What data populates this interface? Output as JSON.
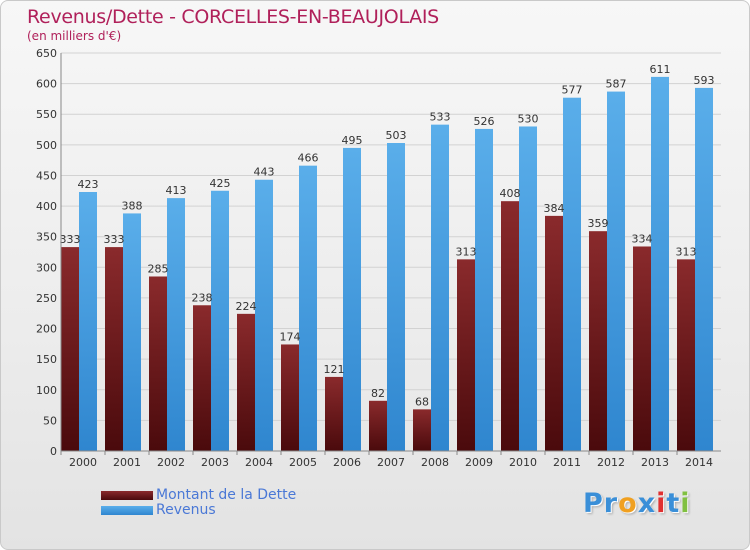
{
  "header": {
    "title": "Revenus/Dette - CORCELLES-EN-BEAUJOLAIS",
    "subtitle": "(en milliers d'€)"
  },
  "legend": {
    "items": [
      {
        "label": "Montant de la Dette",
        "color": "#7a1f22"
      },
      {
        "label": "Revenus",
        "color": "#4a9fe0"
      }
    ]
  },
  "logo": {
    "letters": [
      {
        "ch": "P",
        "color": "#3a8fd8"
      },
      {
        "ch": "r",
        "color": "#3a8fd8"
      },
      {
        "ch": "o",
        "color": "#f0a020"
      },
      {
        "ch": "x",
        "color": "#3a8fd8"
      },
      {
        "ch": "i",
        "color": "#e03030"
      },
      {
        "ch": "t",
        "color": "#3a8fd8"
      },
      {
        "ch": "i",
        "color": "#80c040"
      }
    ]
  },
  "chart_data": {
    "type": "bar",
    "title": "Revenus/Dette - CORCELLES-EN-BEAUJOLAIS",
    "subtitle": "(en milliers d'€)",
    "categories": [
      "2000",
      "2001",
      "2002",
      "2003",
      "2004",
      "2005",
      "2006",
      "2007",
      "2008",
      "2009",
      "2010",
      "2011",
      "2012",
      "2013",
      "2014"
    ],
    "series": [
      {
        "name": "Montant de la Dette",
        "color": "#7a1f22",
        "values": [
          333,
          333,
          285,
          238,
          224,
          174,
          121,
          82,
          68,
          313,
          408,
          384,
          359,
          334,
          313
        ]
      },
      {
        "name": "Revenus",
        "color": "#4a9fe0",
        "values": [
          423,
          388,
          413,
          425,
          443,
          466,
          495,
          503,
          533,
          526,
          530,
          577,
          587,
          611,
          593
        ]
      }
    ],
    "ylim": [
      0,
      650
    ],
    "yticks": [
      0,
      50,
      100,
      150,
      200,
      250,
      300,
      350,
      400,
      450,
      500,
      550,
      600,
      650
    ],
    "grid": true,
    "legend_position": "bottom-left"
  }
}
